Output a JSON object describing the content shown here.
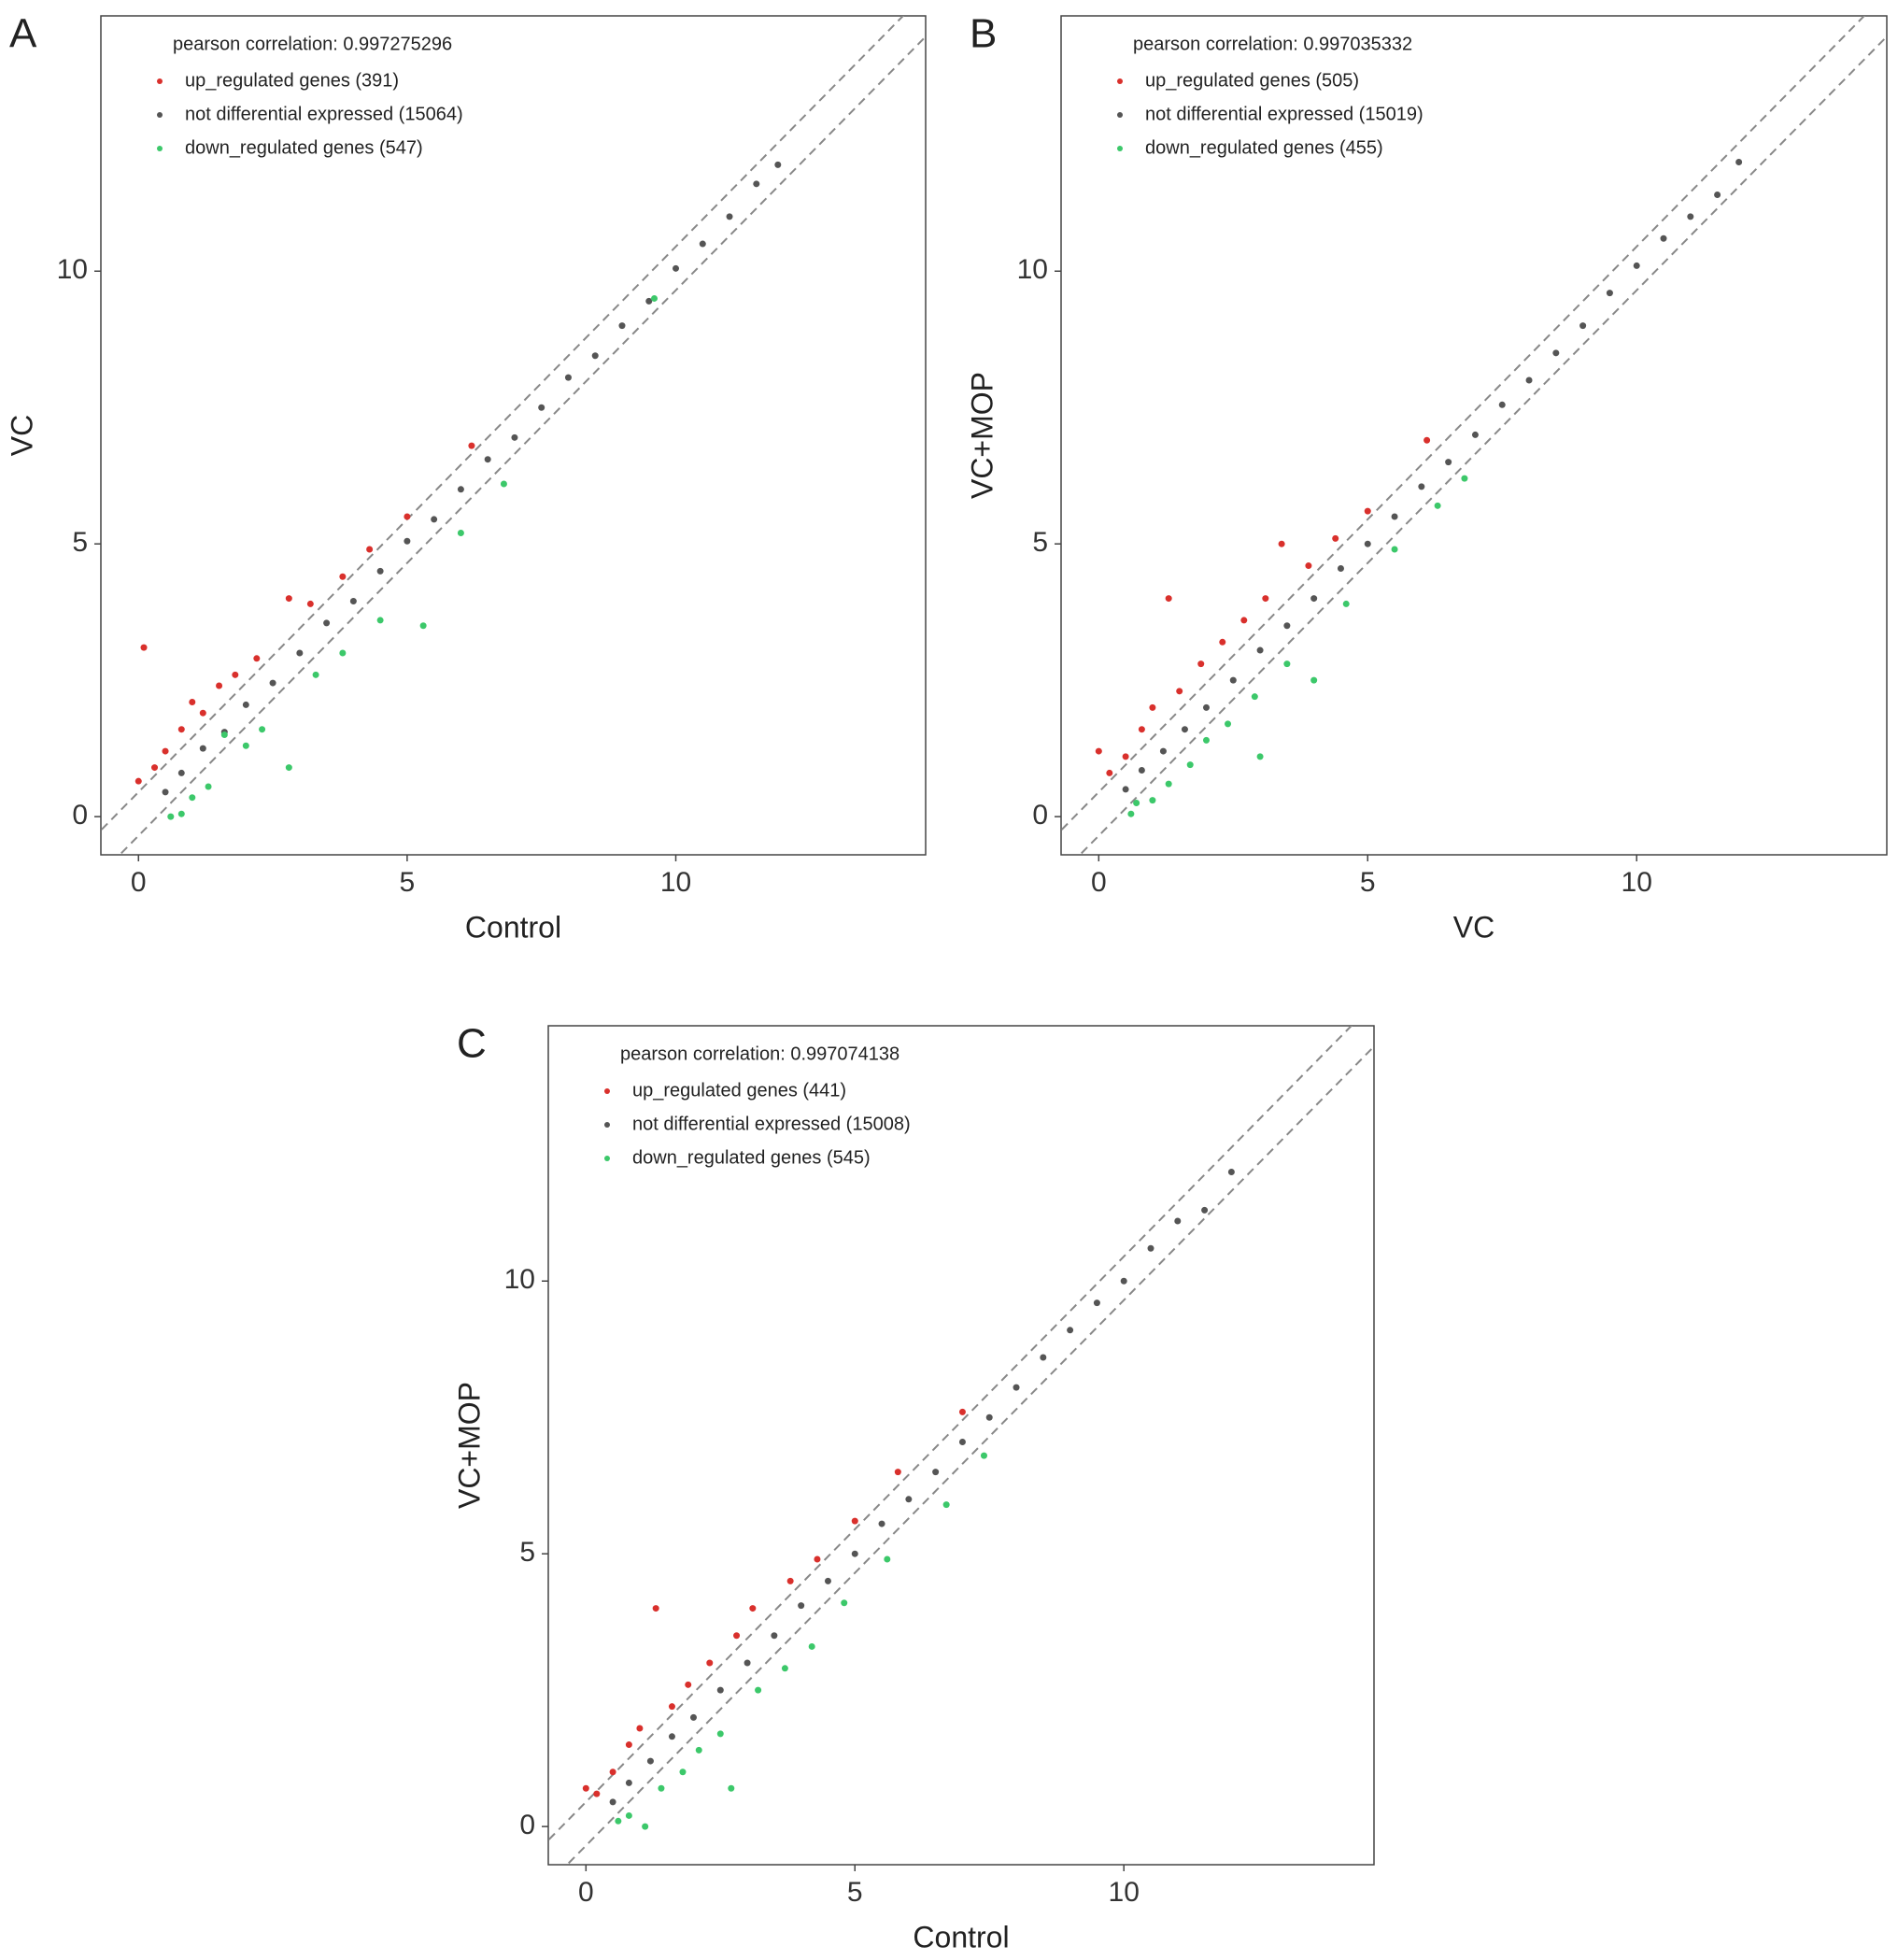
{
  "chart_data": [
    {
      "type": "scatter",
      "panel": "A",
      "annotation": "pearson correlation: 0.997275296",
      "xlabel": "Control",
      "ylabel": "VC",
      "xlim": [
        -0.7,
        14.65
      ],
      "ylim": [
        -0.7,
        14.68
      ],
      "xticks": [
        0,
        5,
        10
      ],
      "yticks": [
        0,
        5,
        10
      ],
      "reference_lines": [
        0.45,
        -0.35
      ],
      "series": [
        {
          "name": "up_regulated genes (391)",
          "color": "#d9302c",
          "x": [
            0.0,
            0.1,
            0.3,
            0.5,
            0.8,
            1.0,
            1.2,
            1.5,
            1.8,
            2.2,
            2.8,
            3.2,
            3.8,
            4.3,
            5.0,
            6.2
          ],
          "values": [
            0.65,
            3.1,
            0.9,
            1.2,
            1.6,
            2.1,
            1.9,
            2.4,
            2.6,
            2.9,
            4.0,
            3.9,
            4.4,
            4.9,
            5.5,
            6.8
          ]
        },
        {
          "name": "not differential expressed (15064)",
          "color": "#555555",
          "x": [
            0.5,
            0.8,
            1.2,
            1.6,
            2.0,
            2.5,
            3.0,
            3.5,
            4.0,
            4.5,
            5.0,
            5.5,
            6.0,
            6.5,
            7.0,
            7.5,
            8.0,
            8.5,
            9.0,
            9.5,
            10.0,
            10.5,
            11.0,
            11.5,
            11.9
          ],
          "values": [
            0.45,
            0.8,
            1.25,
            1.55,
            2.05,
            2.45,
            3.0,
            3.55,
            3.95,
            4.5,
            5.05,
            5.45,
            6.0,
            6.55,
            6.95,
            7.5,
            8.05,
            8.45,
            9.0,
            9.45,
            10.05,
            10.5,
            11.0,
            11.6,
            11.95
          ]
        },
        {
          "name": "down_regulated genes (547)",
          "color": "#3cc86a",
          "x": [
            0.6,
            0.8,
            1.0,
            1.3,
            1.6,
            2.0,
            2.3,
            2.8,
            3.3,
            3.8,
            4.5,
            5.3,
            6.0,
            6.8,
            9.6
          ],
          "values": [
            0.0,
            0.05,
            0.35,
            0.55,
            1.5,
            1.3,
            1.6,
            0.9,
            2.6,
            3.0,
            3.6,
            3.5,
            5.2,
            6.1,
            9.5
          ]
        }
      ]
    },
    {
      "type": "scatter",
      "panel": "B",
      "annotation": "pearson correlation: 0.997035332",
      "xlabel": "VC",
      "ylabel": "VC+MOP",
      "xlim": [
        -0.7,
        14.65
      ],
      "ylim": [
        -0.7,
        14.68
      ],
      "xticks": [
        0,
        5,
        10
      ],
      "yticks": [
        0,
        5,
        10
      ],
      "reference_lines": [
        0.45,
        -0.35
      ],
      "series": [
        {
          "name": "up_regulated genes (505)",
          "color": "#d9302c",
          "x": [
            0.0,
            0.2,
            0.5,
            0.8,
            1.0,
            1.3,
            1.5,
            1.9,
            2.3,
            2.7,
            3.1,
            3.4,
            3.9,
            4.4,
            5.0,
            6.1
          ],
          "values": [
            1.2,
            0.8,
            1.1,
            1.6,
            2.0,
            4.0,
            2.3,
            2.8,
            3.2,
            3.6,
            4.0,
            5.0,
            4.6,
            5.1,
            5.6,
            6.9
          ]
        },
        {
          "name": "not differential expressed (15019)",
          "color": "#555555",
          "x": [
            0.5,
            0.8,
            1.2,
            1.6,
            2.0,
            2.5,
            3.0,
            3.5,
            4.0,
            4.5,
            5.0,
            5.5,
            6.0,
            6.5,
            7.0,
            7.5,
            8.0,
            8.5,
            9.0,
            9.5,
            10.0,
            10.5,
            11.0,
            11.5,
            11.9
          ],
          "values": [
            0.5,
            0.85,
            1.2,
            1.6,
            2.0,
            2.5,
            3.05,
            3.5,
            4.0,
            4.55,
            5.0,
            5.5,
            6.05,
            6.5,
            7.0,
            7.55,
            8.0,
            8.5,
            9.0,
            9.6,
            10.1,
            10.6,
            11.0,
            11.4,
            12.0
          ]
        },
        {
          "name": "down_regulated genes (455)",
          "color": "#3cc86a",
          "x": [
            0.6,
            0.7,
            1.0,
            1.3,
            1.7,
            2.0,
            2.4,
            2.9,
            3.0,
            3.5,
            4.0,
            4.6,
            5.5,
            6.3,
            6.8
          ],
          "values": [
            0.05,
            0.25,
            0.3,
            0.6,
            0.95,
            1.4,
            1.7,
            2.2,
            1.1,
            2.8,
            2.5,
            3.9,
            4.9,
            5.7,
            6.2
          ]
        }
      ]
    },
    {
      "type": "scatter",
      "panel": "C",
      "annotation": "pearson correlation: 0.997074138",
      "xlabel": "Control",
      "ylabel": "VC+MOP",
      "xlim": [
        -0.7,
        14.65
      ],
      "ylim": [
        -0.7,
        14.68
      ],
      "xticks": [
        0,
        5,
        10
      ],
      "yticks": [
        0,
        5,
        10
      ],
      "reference_lines": [
        0.45,
        -0.35
      ],
      "series": [
        {
          "name": "up_regulated genes (441)",
          "color": "#d9302c",
          "x": [
            0.0,
            0.2,
            0.5,
            0.8,
            1.0,
            1.3,
            1.6,
            1.9,
            2.3,
            2.8,
            3.1,
            3.8,
            4.3,
            5.0,
            5.8,
            7.0
          ],
          "values": [
            0.7,
            0.6,
            1.0,
            1.5,
            1.8,
            4.0,
            2.2,
            2.6,
            3.0,
            3.5,
            4.0,
            4.5,
            4.9,
            5.6,
            6.5,
            7.6
          ]
        },
        {
          "name": "not differential expressed (15008)",
          "color": "#555555",
          "x": [
            0.5,
            0.8,
            1.2,
            1.6,
            2.0,
            2.5,
            3.0,
            3.5,
            4.0,
            4.5,
            5.0,
            5.5,
            6.0,
            6.5,
            7.0,
            7.5,
            8.0,
            8.5,
            9.0,
            9.5,
            10.0,
            10.5,
            11.0,
            11.5,
            12.0
          ],
          "values": [
            0.45,
            0.8,
            1.2,
            1.65,
            2.0,
            2.5,
            3.0,
            3.5,
            4.05,
            4.5,
            5.0,
            5.55,
            6.0,
            6.5,
            7.05,
            7.5,
            8.05,
            8.6,
            9.1,
            9.6,
            10.0,
            10.6,
            11.1,
            11.3,
            12.0
          ]
        },
        {
          "name": "down_regulated genes (545)",
          "color": "#3cc86a",
          "x": [
            0.6,
            0.8,
            1.1,
            1.4,
            1.8,
            2.1,
            2.5,
            2.7,
            3.2,
            3.7,
            4.2,
            4.8,
            5.6,
            6.7,
            7.4
          ],
          "values": [
            0.1,
            0.2,
            0.0,
            0.7,
            1.0,
            1.4,
            1.7,
            0.7,
            2.5,
            2.9,
            3.3,
            4.1,
            4.9,
            5.9,
            6.8
          ]
        }
      ]
    }
  ]
}
